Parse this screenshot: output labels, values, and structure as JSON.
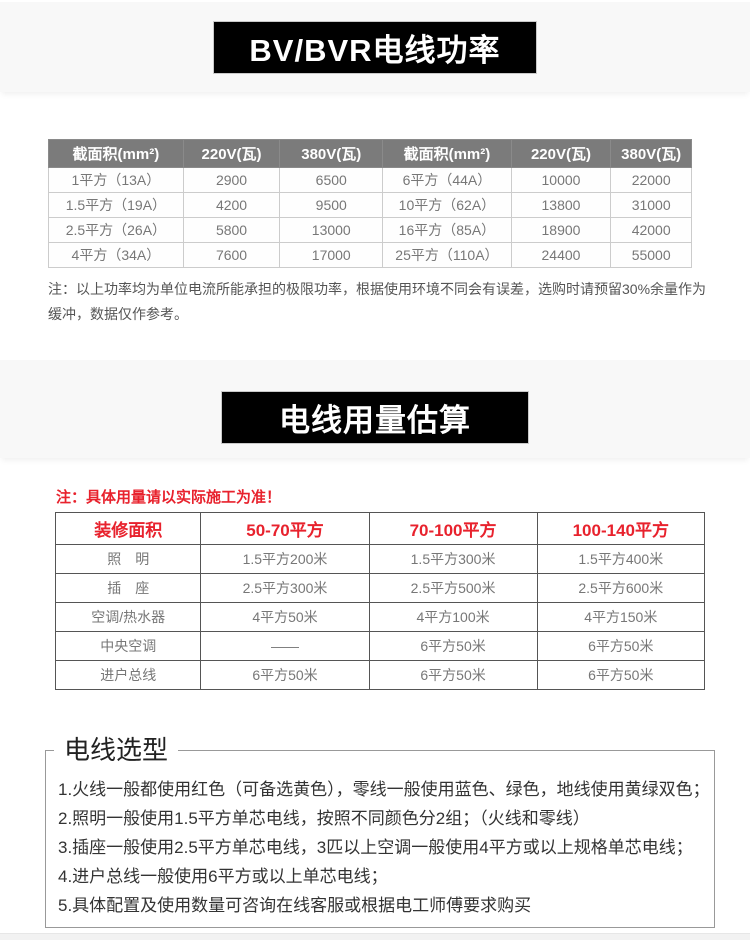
{
  "colors": {
    "banner_bg": "#000000",
    "banner_text": "#ffffff",
    "table1_header_bg": "#7b7b7b",
    "accent_red": "#e8222d",
    "band_bg": "#f8f8f8",
    "body_text": "#777777"
  },
  "section1": {
    "title": "BV/BVR电线功率",
    "table": {
      "headers": [
        "截面积(mm²)",
        "220V(瓦)",
        "380V(瓦)",
        "截面积(mm²)",
        "220V(瓦)",
        "380V(瓦)"
      ],
      "rows": [
        [
          "1平方（13A）",
          "2900",
          "6500",
          "6平方（44A）",
          "10000",
          "22000"
        ],
        [
          "1.5平方（19A）",
          "4200",
          "9500",
          "10平方（62A）",
          "13800",
          "31000"
        ],
        [
          "2.5平方（26A）",
          "5800",
          "13000",
          "16平方（85A）",
          "18900",
          "42000"
        ],
        [
          "4平方（34A）",
          "7600",
          "17000",
          "25平方（110A）",
          "24400",
          "55000"
        ]
      ]
    },
    "note": "注：以上功率均为单位电流所能承担的极限功率，根据使用环境不同会有误差，选购时请预留30%余量作为缓冲，数据仅作参考。"
  },
  "section2": {
    "title": "电线用量估算",
    "warning": "注：具体用量请以实际施工为准！",
    "table": {
      "headers": [
        "装修面积",
        "50-70平方",
        "70-100平方",
        "100-140平方"
      ],
      "rows": [
        [
          "照　明",
          "1.5平方200米",
          "1.5平方300米",
          "1.5平方400米"
        ],
        [
          "插　座",
          "2.5平方300米",
          "2.5平方500米",
          "2.5平方600米"
        ],
        [
          "空调/热水器",
          "4平方50米",
          "4平方100米",
          "4平方150米"
        ],
        [
          "中央空调",
          "——",
          "6平方50米",
          "6平方50米"
        ],
        [
          "进户总线",
          "6平方50米",
          "6平方50米",
          "6平方50米"
        ]
      ]
    }
  },
  "section3": {
    "title": "电线选型",
    "items": [
      "1.火线一般都使用红色（可备选黄色），零线一般使用蓝色、绿色，地线使用黄绿双色；",
      "2.照明一般使用1.5平方单芯电线，按照不同颜色分2组；（火线和零线）",
      "3.插座一般使用2.5平方单芯电线，3匹以上空调一般使用4平方或以上规格单芯电线；",
      "4.进户总线一般使用6平方或以上单芯电线；",
      "5.具体配置及使用数量可咨询在线客服或根据电工师傅要求购买"
    ]
  }
}
